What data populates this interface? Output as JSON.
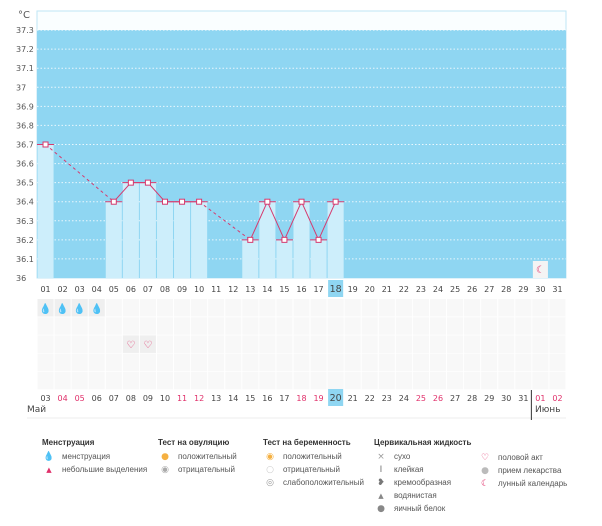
{
  "chart_data": {
    "type": "bar",
    "unit_label": "°C",
    "yticks": [
      "36",
      "36.1",
      "36.2",
      "36.3",
      "36.4",
      "36.5",
      "36.6",
      "36.7",
      "36.8",
      "36.9",
      "37",
      "37.1",
      "37.2",
      "37.3"
    ],
    "ylim": [
      36,
      37.4
    ],
    "cycle_days": [
      "01",
      "02",
      "03",
      "04",
      "05",
      "06",
      "07",
      "08",
      "09",
      "10",
      "11",
      "12",
      "13",
      "14",
      "15",
      "16",
      "17",
      "18",
      "19",
      "20",
      "21",
      "22",
      "23",
      "24",
      "25",
      "26",
      "27",
      "28",
      "29",
      "30",
      "31"
    ],
    "current_cycle_day": "18",
    "temperatures": [
      36.7,
      null,
      null,
      null,
      36.4,
      36.5,
      36.5,
      36.4,
      36.4,
      36.4,
      null,
      null,
      36.2,
      36.4,
      36.2,
      36.4,
      36.2,
      36.4,
      null,
      null,
      null,
      null,
      null,
      null,
      null,
      null,
      null,
      null,
      null,
      null,
      null
    ],
    "dates": [
      "03",
      "04",
      "05",
      "06",
      "07",
      "08",
      "09",
      "10",
      "11",
      "12",
      "13",
      "14",
      "15",
      "16",
      "17",
      "18",
      "19",
      "20",
      "21",
      "22",
      "23",
      "24",
      "25",
      "26",
      "27",
      "28",
      "29",
      "30",
      "31",
      "01",
      "02"
    ],
    "weekend_dates": [
      1,
      2,
      8,
      9,
      15,
      16,
      22,
      23,
      29,
      30
    ],
    "current_date_index": 17,
    "months": [
      "Май",
      "Июнь"
    ],
    "menstruation_days": [
      0,
      1,
      2,
      3
    ],
    "intercourse_days": [
      5,
      6
    ],
    "moon_day": 29
  },
  "colors": {
    "plot_bg": "#8fd6f2",
    "bar": "#cdeefb",
    "line": "#d63a6e",
    "accent": "#e0306a",
    "today": "#8fd6f2"
  },
  "legend": {
    "menstruation": {
      "title": "Менструация",
      "items": [
        "менструация",
        "небольшие выделения"
      ]
    },
    "ovulation": {
      "title": "Тест на овуляцию",
      "items": [
        "положительный",
        "отрицательный"
      ]
    },
    "pregnancy": {
      "title": "Тест на беременность",
      "items": [
        "положительный",
        "отрицательный",
        "слабоположительный"
      ]
    },
    "cervical": {
      "title": "Цервикальная жидкость",
      "items": [
        "сухо",
        "клейкая",
        "кремообразная",
        "водянистая",
        "яичный белок"
      ]
    },
    "other": {
      "items": [
        "половой акт",
        "прием лекарства",
        "лунный календарь"
      ]
    }
  }
}
